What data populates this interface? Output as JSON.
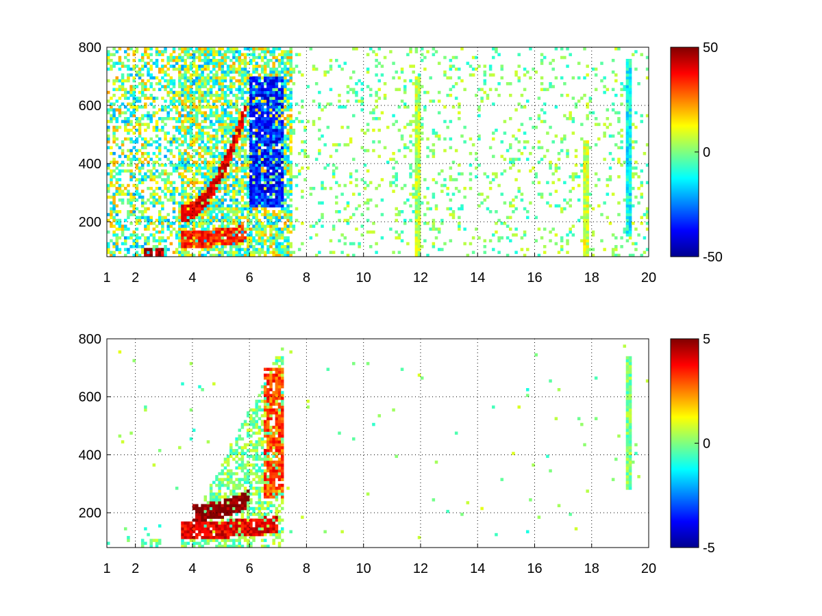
{
  "chart_data": [
    {
      "type": "heatmap",
      "title": "",
      "xlabel": "",
      "ylabel": "",
      "xlim": [
        1,
        20
      ],
      "ylim": [
        80,
        800
      ],
      "x_ticks": [
        1,
        2,
        4,
        6,
        8,
        10,
        12,
        14,
        16,
        18,
        20
      ],
      "x_tick_labels": [
        "1",
        "2",
        "4",
        "6",
        "8",
        "10",
        "12",
        "14",
        "16",
        "18",
        "20"
      ],
      "y_ticks": [
        200,
        400,
        600,
        800
      ],
      "y_tick_labels": [
        "200",
        "400",
        "600",
        "800"
      ],
      "grid": true,
      "colormap": "jet",
      "clim": [
        -50,
        50
      ],
      "colorbar_ticks": [
        -50,
        0,
        50
      ],
      "colorbar_tick_labels": [
        "-50",
        "0",
        "50"
      ],
      "features": [
        {
          "kind": "ridge",
          "x0": 3.6,
          "x1": 5.9,
          "y0": 230,
          "y1": 600,
          "value": 40
        },
        {
          "kind": "ridge",
          "x0": 3.6,
          "x1": 5.9,
          "y0": 140,
          "y1": 160,
          "value": 35
        },
        {
          "kind": "patch",
          "x0": 2.3,
          "x1": 3.0,
          "y0": 80,
          "y1": 110,
          "value": 45
        },
        {
          "kind": "patch",
          "x0": 6.0,
          "x1": 7.2,
          "y0": 250,
          "y1": 700,
          "value": -35
        },
        {
          "kind": "column",
          "x": 11.9,
          "y0": 80,
          "y1": 700,
          "value": 6
        },
        {
          "kind": "column",
          "x": 17.8,
          "y0": 80,
          "y1": 480,
          "value": 8
        },
        {
          "kind": "column",
          "x": 19.3,
          "y0": 150,
          "y1": 760,
          "value": -12
        }
      ]
    },
    {
      "type": "heatmap",
      "title": "",
      "xlabel": "",
      "ylabel": "",
      "xlim": [
        1,
        20
      ],
      "ylim": [
        80,
        800
      ],
      "x_ticks": [
        1,
        2,
        4,
        6,
        8,
        10,
        12,
        14,
        16,
        18,
        20
      ],
      "x_tick_labels": [
        "1",
        "2",
        "4",
        "6",
        "8",
        "10",
        "12",
        "14",
        "16",
        "18",
        "20"
      ],
      "y_ticks": [
        200,
        400,
        600,
        800
      ],
      "y_tick_labels": [
        "200",
        "400",
        "600",
        "800"
      ],
      "grid": true,
      "colormap": "jet",
      "clim": [
        -5,
        5
      ],
      "colorbar_ticks": [
        -5,
        0,
        5
      ],
      "colorbar_tick_labels": [
        "-5",
        "0",
        "5"
      ],
      "features": [
        {
          "kind": "ridge",
          "x0": 4.0,
          "x1": 6.0,
          "y0": 200,
          "y1": 250,
          "value": 5
        },
        {
          "kind": "ridge",
          "x0": 3.6,
          "x1": 7.0,
          "y0": 140,
          "y1": 160,
          "value": 4
        },
        {
          "kind": "patch",
          "x0": 6.5,
          "x1": 7.2,
          "y0": 250,
          "y1": 700,
          "value": 3
        },
        {
          "kind": "patch",
          "x0": 2.2,
          "x1": 2.9,
          "y0": 80,
          "y1": 110,
          "value": 0
        },
        {
          "kind": "column",
          "x": 19.3,
          "y0": 280,
          "y1": 740,
          "value": 0
        }
      ]
    }
  ]
}
